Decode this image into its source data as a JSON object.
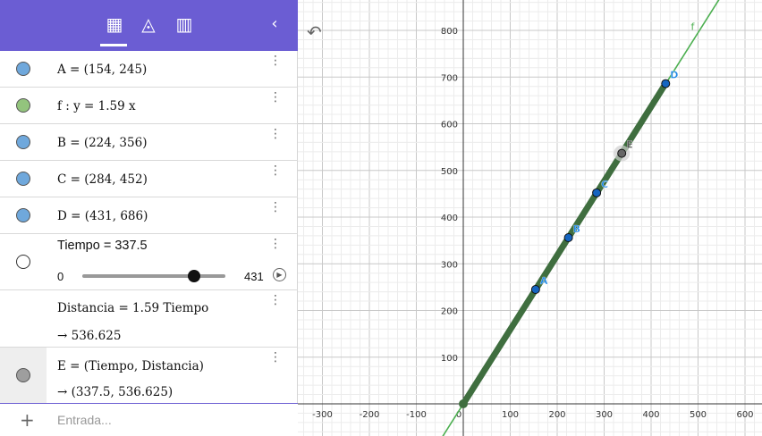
{
  "toolbar": {
    "icons": [
      "calculator-icon",
      "geometry-tools-icon",
      "table-icon",
      "collapse-chevron-icon"
    ],
    "collapse_glyph": "‹"
  },
  "rows": [
    {
      "label": "A = (154, 245)",
      "color": "#6fa8dc"
    },
    {
      "label": "f : y = 1.59 x",
      "color": "#93c47d"
    },
    {
      "label": "B = (224, 356)",
      "color": "#6fa8dc"
    },
    {
      "label": "C = (284, 452)",
      "color": "#6fa8dc"
    },
    {
      "label": "D = (431, 686)",
      "color": "#6fa8dc"
    }
  ],
  "slider": {
    "label": "Tiempo = 337.5",
    "min": "0",
    "max": "431",
    "value": 337.5
  },
  "distancia": {
    "definition": "Distancia = 1.59 Tiempo",
    "result": "→ 536.625"
  },
  "point_e": {
    "definition": "E = (Tiempo, Distancia)",
    "result": "→ (337.5, 536.625)",
    "color": "#666666"
  },
  "input_bar": {
    "plus": "+",
    "placeholder": "Entrada..."
  },
  "graph": {
    "x_ticks": [
      "-300",
      "-200",
      "-100",
      "0",
      "100",
      "200",
      "300",
      "400",
      "500",
      "600"
    ],
    "y_ticks": [
      "100",
      "200",
      "300",
      "400",
      "500",
      "600",
      "700",
      "800"
    ],
    "points": [
      {
        "name": "A",
        "x": 154,
        "y": 245
      },
      {
        "name": "B",
        "x": 224,
        "y": 356
      },
      {
        "name": "C",
        "x": 284,
        "y": 452
      },
      {
        "name": "D",
        "x": 431,
        "y": 686
      },
      {
        "name": "E",
        "x": 337.5,
        "y": 536.625
      }
    ],
    "function_label": "f",
    "slope": 1.59,
    "colors": {
      "line": "#4caf50",
      "trace": "#3f6e3f",
      "point": "#1565c0",
      "label": "#1e88e5"
    }
  }
}
